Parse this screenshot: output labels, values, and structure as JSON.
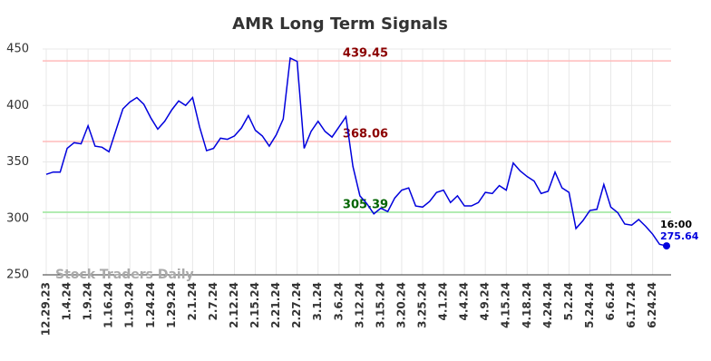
{
  "chart_data": {
    "type": "line",
    "title": "AMR Long Term Signals",
    "watermark": "Stock Traders Daily",
    "categories": [
      "12.29.23",
      null,
      null,
      "1.4.24",
      null,
      null,
      "1.9.24",
      null,
      null,
      "1.16.24",
      null,
      null,
      "1.19.24",
      null,
      null,
      "1.24.24",
      null,
      null,
      "1.29.24",
      null,
      null,
      "2.1.24",
      null,
      null,
      "2.7.24",
      null,
      null,
      "2.12.24",
      null,
      null,
      "2.15.24",
      null,
      null,
      "2.21.24",
      null,
      null,
      "2.27.24",
      null,
      null,
      "3.1.24",
      null,
      null,
      "3.6.24",
      null,
      null,
      "3.12.24",
      null,
      null,
      "3.15.24",
      null,
      null,
      "3.20.24",
      null,
      null,
      "3.25.24",
      null,
      null,
      "4.1.24",
      null,
      null,
      "4.4.24",
      null,
      null,
      "4.9.24",
      null,
      null,
      "4.15.24",
      null,
      null,
      "4.18.24",
      null,
      null,
      "4.24.24",
      null,
      null,
      "5.2.24",
      null,
      null,
      "5.24.24",
      null,
      null,
      "6.6.24",
      null,
      null,
      "6.17.24",
      null,
      null,
      "6.24.24",
      null,
      null
    ],
    "series": [
      {
        "name": "AMR",
        "color": "#0000dd",
        "values": [
          339,
          341,
          341,
          362,
          367,
          366,
          382,
          364,
          363,
          359,
          378,
          397,
          403,
          407,
          401,
          389,
          379,
          386,
          396,
          404,
          400,
          407,
          381,
          360,
          362,
          371,
          370,
          373,
          380,
          391,
          378,
          373,
          364,
          374,
          388,
          442,
          439,
          362,
          377,
          386,
          377,
          372,
          381,
          390,
          346,
          320,
          313,
          304,
          309,
          306,
          318,
          325,
          327,
          311,
          310,
          315,
          323,
          325,
          314,
          320,
          311,
          311,
          314,
          323,
          322,
          329,
          325,
          349,
          342,
          337,
          333,
          322,
          324,
          341,
          327,
          323,
          291,
          298,
          307,
          308,
          330,
          310,
          305,
          295,
          294,
          299,
          293,
          286,
          277,
          275.64
        ]
      }
    ],
    "last_label": "16:00",
    "hlines": [
      {
        "value": 439.45,
        "color": "#ffbbbb",
        "label_color": "#8b0000"
      },
      {
        "value": 368.06,
        "color": "#ffbbbb",
        "label_color": "#8b0000"
      },
      {
        "value": 305.39,
        "color": "#99e699",
        "label_color": "#006400"
      }
    ],
    "ylim": [
      250,
      450
    ],
    "yticks": [
      250,
      300,
      350,
      400,
      450
    ],
    "grid": true
  }
}
